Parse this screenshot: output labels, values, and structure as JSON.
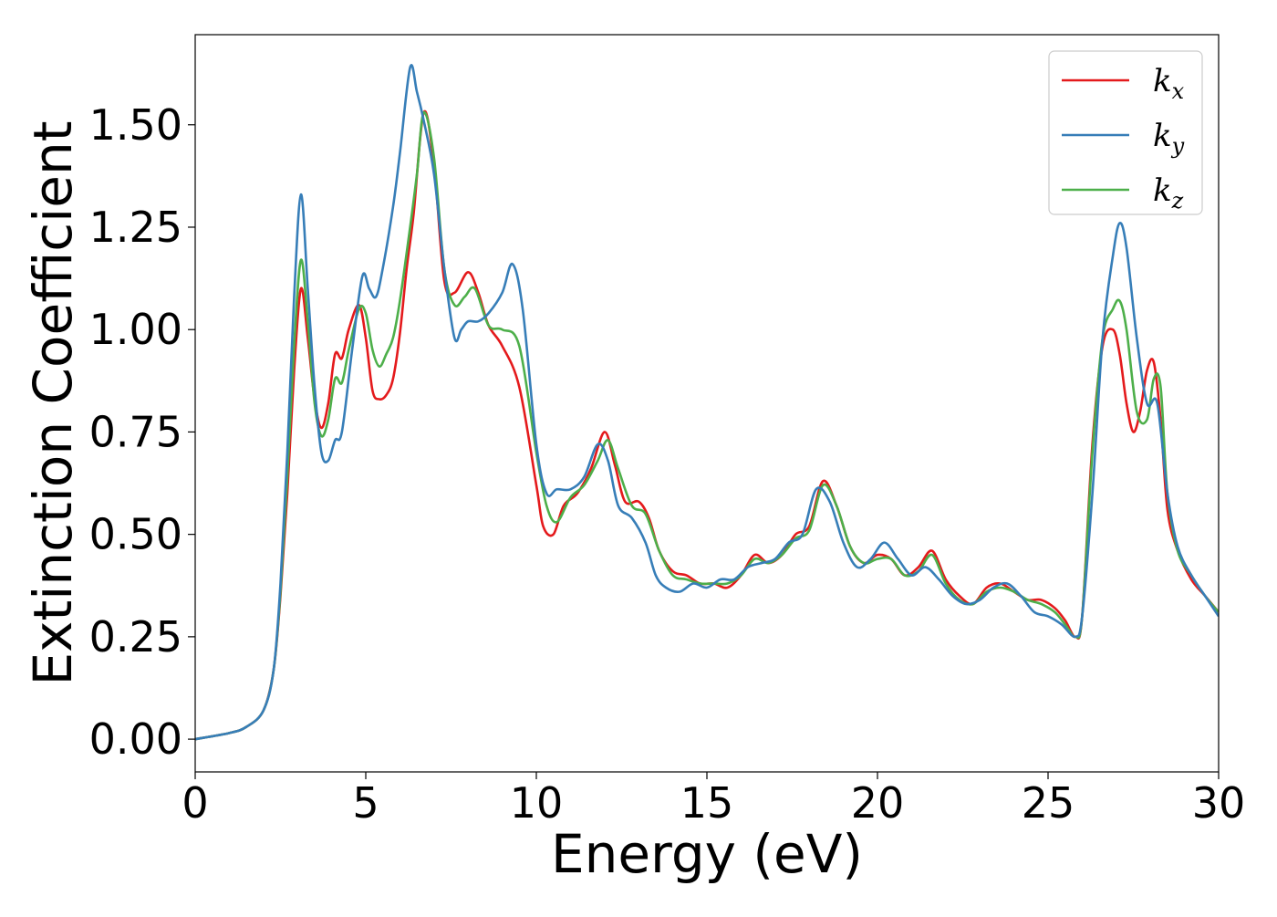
{
  "chart_data": {
    "type": "line",
    "xlabel": "Energy (eV)",
    "ylabel": "Extinction Coefficient",
    "xlim": [
      0,
      30
    ],
    "ylim": [
      -0.08,
      1.72
    ],
    "xticks": [
      0,
      5,
      10,
      15,
      20,
      25,
      30
    ],
    "xtick_labels": [
      "0",
      "5",
      "10",
      "15",
      "20",
      "25",
      "30"
    ],
    "yticks": [
      0.0,
      0.25,
      0.5,
      0.75,
      1.0,
      1.25,
      1.5
    ],
    "ytick_labels": [
      "0.00",
      "0.25",
      "0.50",
      "0.75",
      "1.00",
      "1.25",
      "1.50"
    ],
    "grid": false,
    "legend_position": "top-right",
    "series": [
      {
        "name": "k_x",
        "legend_base": "k",
        "legend_sub": "x",
        "color": "#e41a1c",
        "x": [
          0,
          1,
          1.5,
          2,
          2.3,
          2.5,
          2.7,
          2.9,
          3.1,
          3.3,
          3.5,
          3.7,
          3.9,
          4.1,
          4.3,
          4.5,
          4.8,
          5.0,
          5.2,
          5.4,
          5.6,
          5.8,
          6.0,
          6.2,
          6.4,
          6.7,
          7.0,
          7.3,
          7.6,
          8.0,
          8.3,
          8.6,
          9.0,
          9.5,
          10.0,
          10.2,
          10.5,
          10.8,
          11.2,
          11.6,
          12.0,
          12.3,
          12.6,
          13.0,
          13.3,
          13.6,
          14.0,
          14.4,
          14.8,
          15.2,
          15.6,
          16.0,
          16.4,
          16.8,
          17.2,
          17.6,
          18.0,
          18.4,
          18.8,
          19.2,
          19.6,
          20.0,
          20.4,
          20.8,
          21.2,
          21.6,
          22.0,
          22.4,
          22.8,
          23.2,
          23.6,
          24.0,
          24.4,
          24.8,
          25.2,
          25.5,
          25.8,
          26.0,
          26.3,
          26.6,
          26.9,
          27.1,
          27.3,
          27.5,
          27.7,
          27.9,
          28.1,
          28.3,
          28.5,
          28.8,
          29.2,
          29.6,
          30.0
        ],
        "values": [
          0,
          0.015,
          0.03,
          0.07,
          0.17,
          0.35,
          0.6,
          0.9,
          1.1,
          0.98,
          0.83,
          0.76,
          0.82,
          0.94,
          0.93,
          1.0,
          1.06,
          0.98,
          0.85,
          0.83,
          0.84,
          0.88,
          0.99,
          1.15,
          1.28,
          1.53,
          1.4,
          1.12,
          1.09,
          1.14,
          1.09,
          1.01,
          0.96,
          0.86,
          0.62,
          0.52,
          0.5,
          0.57,
          0.6,
          0.66,
          0.75,
          0.67,
          0.58,
          0.58,
          0.54,
          0.46,
          0.41,
          0.4,
          0.38,
          0.38,
          0.37,
          0.4,
          0.45,
          0.43,
          0.45,
          0.5,
          0.52,
          0.63,
          0.57,
          0.47,
          0.43,
          0.45,
          0.44,
          0.4,
          0.42,
          0.46,
          0.39,
          0.35,
          0.33,
          0.37,
          0.38,
          0.36,
          0.34,
          0.34,
          0.32,
          0.29,
          0.25,
          0.3,
          0.72,
          0.96,
          1.0,
          0.94,
          0.82,
          0.75,
          0.8,
          0.9,
          0.92,
          0.78,
          0.56,
          0.46,
          0.39,
          0.35,
          0.31
        ]
      },
      {
        "name": "k_y",
        "legend_base": "k",
        "legend_sub": "y",
        "color": "#377eb8",
        "x": [
          0,
          1,
          1.5,
          2,
          2.3,
          2.5,
          2.7,
          2.9,
          3.1,
          3.3,
          3.5,
          3.7,
          3.9,
          4.1,
          4.3,
          4.6,
          4.9,
          5.1,
          5.3,
          5.5,
          5.8,
          6.0,
          6.3,
          6.5,
          6.7,
          7.0,
          7.3,
          7.6,
          7.8,
          8.0,
          8.3,
          8.6,
          9.0,
          9.3,
          9.6,
          10.0,
          10.3,
          10.6,
          11.0,
          11.4,
          11.8,
          12.1,
          12.4,
          12.8,
          13.2,
          13.5,
          13.8,
          14.2,
          14.6,
          15.0,
          15.4,
          15.8,
          16.2,
          16.6,
          17.0,
          17.4,
          17.8,
          18.2,
          18.6,
          19.0,
          19.4,
          19.8,
          20.2,
          20.6,
          21.0,
          21.4,
          21.8,
          22.2,
          22.6,
          23.0,
          23.4,
          23.8,
          24.2,
          24.6,
          25.0,
          25.4,
          25.8,
          26.0,
          26.3,
          26.6,
          26.9,
          27.1,
          27.3,
          27.6,
          27.9,
          28.2,
          28.5,
          28.8,
          29.2,
          29.6,
          30.0
        ],
        "values": [
          0,
          0.015,
          0.03,
          0.07,
          0.17,
          0.38,
          0.7,
          1.08,
          1.33,
          1.1,
          0.86,
          0.7,
          0.68,
          0.73,
          0.75,
          0.95,
          1.13,
          1.1,
          1.08,
          1.15,
          1.3,
          1.43,
          1.64,
          1.58,
          1.51,
          1.38,
          1.15,
          0.98,
          1.0,
          1.02,
          1.02,
          1.04,
          1.09,
          1.16,
          1.05,
          0.72,
          0.6,
          0.61,
          0.61,
          0.64,
          0.72,
          0.68,
          0.57,
          0.54,
          0.48,
          0.4,
          0.37,
          0.36,
          0.38,
          0.37,
          0.39,
          0.39,
          0.42,
          0.43,
          0.44,
          0.48,
          0.5,
          0.61,
          0.58,
          0.48,
          0.42,
          0.44,
          0.48,
          0.44,
          0.4,
          0.42,
          0.39,
          0.35,
          0.33,
          0.34,
          0.37,
          0.38,
          0.35,
          0.31,
          0.3,
          0.28,
          0.25,
          0.3,
          0.6,
          0.98,
          1.18,
          1.26,
          1.2,
          0.98,
          0.82,
          0.82,
          0.6,
          0.47,
          0.4,
          0.35,
          0.3
        ]
      },
      {
        "name": "k_z",
        "legend_base": "k",
        "legend_sub": "z",
        "color": "#4daf4a",
        "x": [
          0,
          1,
          1.5,
          2,
          2.3,
          2.5,
          2.7,
          2.9,
          3.1,
          3.3,
          3.5,
          3.7,
          3.9,
          4.1,
          4.3,
          4.5,
          4.8,
          5.0,
          5.2,
          5.4,
          5.6,
          5.8,
          6.0,
          6.3,
          6.5,
          6.7,
          7.0,
          7.3,
          7.6,
          7.9,
          8.2,
          8.6,
          9.0,
          9.5,
          10.0,
          10.3,
          10.6,
          11.0,
          11.4,
          11.8,
          12.1,
          12.4,
          12.8,
          13.2,
          13.6,
          14.0,
          14.4,
          14.8,
          15.2,
          15.6,
          16.0,
          16.4,
          16.8,
          17.2,
          17.6,
          18.0,
          18.4,
          18.8,
          19.2,
          19.6,
          20.0,
          20.4,
          20.8,
          21.2,
          21.6,
          22.0,
          22.4,
          22.8,
          23.2,
          23.6,
          24.0,
          24.4,
          24.8,
          25.2,
          25.5,
          25.8,
          26.0,
          26.3,
          26.6,
          26.9,
          27.1,
          27.3,
          27.6,
          27.9,
          28.1,
          28.3,
          28.5,
          28.8,
          29.2,
          29.6,
          30.0
        ],
        "values": [
          0,
          0.015,
          0.03,
          0.07,
          0.17,
          0.36,
          0.64,
          0.96,
          1.17,
          1.02,
          0.82,
          0.74,
          0.78,
          0.88,
          0.87,
          0.95,
          1.05,
          1.04,
          0.95,
          0.91,
          0.94,
          0.98,
          1.07,
          1.25,
          1.38,
          1.53,
          1.42,
          1.15,
          1.06,
          1.08,
          1.1,
          1.01,
          1.0,
          0.96,
          0.7,
          0.57,
          0.53,
          0.59,
          0.62,
          0.68,
          0.73,
          0.66,
          0.57,
          0.55,
          0.46,
          0.4,
          0.39,
          0.38,
          0.38,
          0.38,
          0.4,
          0.44,
          0.43,
          0.45,
          0.49,
          0.51,
          0.62,
          0.57,
          0.47,
          0.43,
          0.44,
          0.44,
          0.4,
          0.41,
          0.45,
          0.38,
          0.34,
          0.33,
          0.36,
          0.37,
          0.36,
          0.34,
          0.33,
          0.31,
          0.28,
          0.25,
          0.3,
          0.7,
          0.98,
          1.05,
          1.07,
          1.0,
          0.8,
          0.78,
          0.88,
          0.86,
          0.6,
          0.46,
          0.4,
          0.35,
          0.31
        ]
      }
    ]
  }
}
